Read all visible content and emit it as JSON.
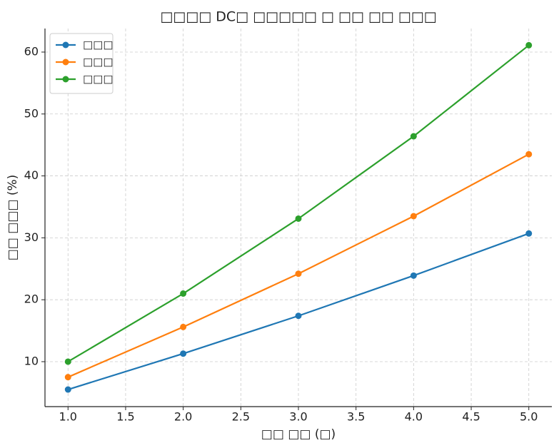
{
  "chart_data": {
    "type": "line",
    "title": "□□□□ DC□ □□□□□ □ □□ □□ □□□",
    "xlabel": "□□ □□ (□)",
    "ylabel": "□□ □□□ (%)",
    "x": [
      1,
      2,
      3,
      4,
      5
    ],
    "series": [
      {
        "name": "□□□",
        "color": "#1f77b4",
        "values": [
          5.5,
          11.3,
          17.4,
          23.9,
          30.7
        ]
      },
      {
        "name": "□□□",
        "color": "#ff7f0e",
        "values": [
          7.5,
          15.6,
          24.2,
          33.5,
          43.5
        ]
      },
      {
        "name": "□□□",
        "color": "#2ca02c",
        "values": [
          10,
          21,
          33.1,
          46.4,
          61.1
        ]
      }
    ],
    "xlim": [
      0.8,
      5.2
    ],
    "xticks": [
      {
        "value": 1,
        "label": "1.0"
      },
      {
        "value": 1.5,
        "label": "1.5"
      },
      {
        "value": 2,
        "label": "2.0"
      },
      {
        "value": 2.5,
        "label": "2.5"
      },
      {
        "value": 3,
        "label": "3.0"
      },
      {
        "value": 3.5,
        "label": "3.5"
      },
      {
        "value": 4,
        "label": "4.0"
      },
      {
        "value": 4.5,
        "label": "4.5"
      },
      {
        "value": 5,
        "label": "5.0"
      }
    ],
    "ylim": [
      2.74,
      63.8
    ],
    "yticks": [
      10,
      20,
      30,
      40,
      50,
      60
    ],
    "grid": true,
    "legend": "upper-left"
  }
}
